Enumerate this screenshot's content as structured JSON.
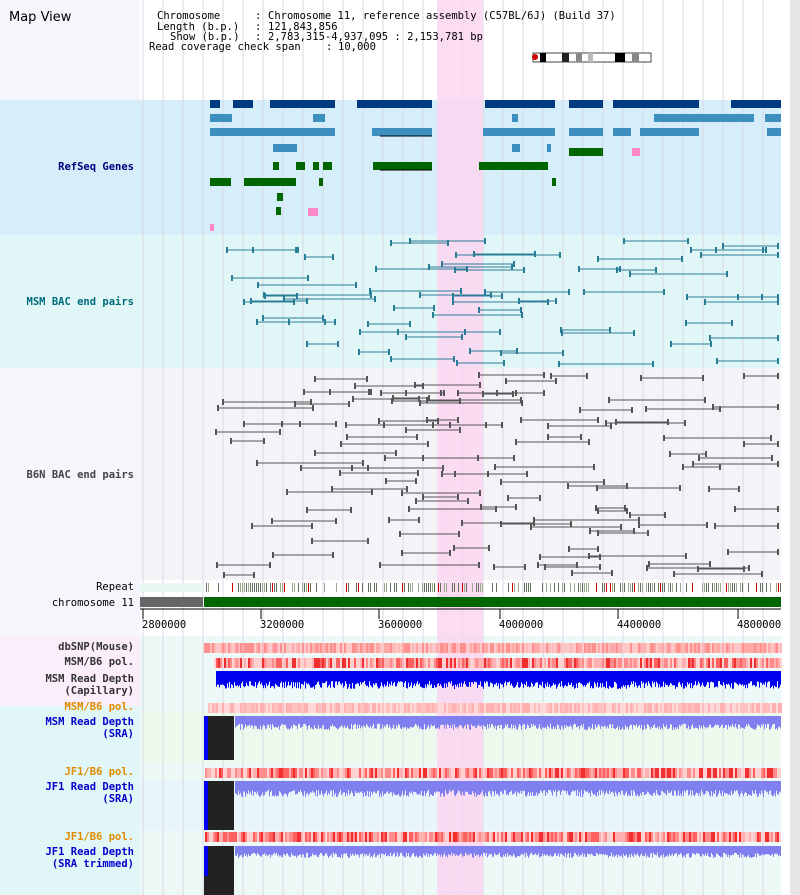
{
  "title": "Map View",
  "info": {
    "chromosome_key": "Chromosome",
    "chromosome_val": "Chromosome 11, reference assembly (C57BL/6J) (Build 37)",
    "length_key": "Length (b.p.)",
    "length_val": "121,843,856",
    "show_key": "Show (b.p.)",
    "show_val": "2,783,315-4,937,095 : 2,153,781 bp",
    "span_key": "Read coverage check span",
    "span_val": "10,000"
  },
  "tracks": {
    "refseq": "RefSeq Genes",
    "msm_bac": "MSM BAC end pairs",
    "b6n_bac": "B6N BAC end pairs",
    "repeat": "Repeat",
    "chromosome": "chromosome 11",
    "dbsnp": "dbSNP(Mouse)",
    "msm_pol1": "MSM/B6 pol.",
    "msm_depth_cap": "MSM Read Depth\n(Capillary)",
    "msm_pol2": "MSM/B6 pol.",
    "msm_depth_sra": "MSM Read Depth\n(SRA)",
    "jf1_pol1": "JF1/B6 pol.",
    "jf1_depth_sra": "JF1 Read Depth\n(SRA)",
    "jf1_pol2": "JF1/B6 pol.",
    "jf1_depth_trim": "JF1 Read Depth\n(SRA trimmed)"
  },
  "axis_ticks": [
    "2800000",
    "3200000",
    "3600000",
    "4000000",
    "4400000",
    "4800000"
  ],
  "colors": {
    "refseq_bg": "#d5eef9",
    "bac_bg": "#e1f7f7",
    "highlight": "#fbd6f0",
    "gene_dark": "#003a80",
    "gene_mid": "#3d8fbf",
    "gene_green": "#006600",
    "chrom_green": "#006600",
    "depth_blue": "#0000ee",
    "depth_light": "#7f7ff0"
  }
}
